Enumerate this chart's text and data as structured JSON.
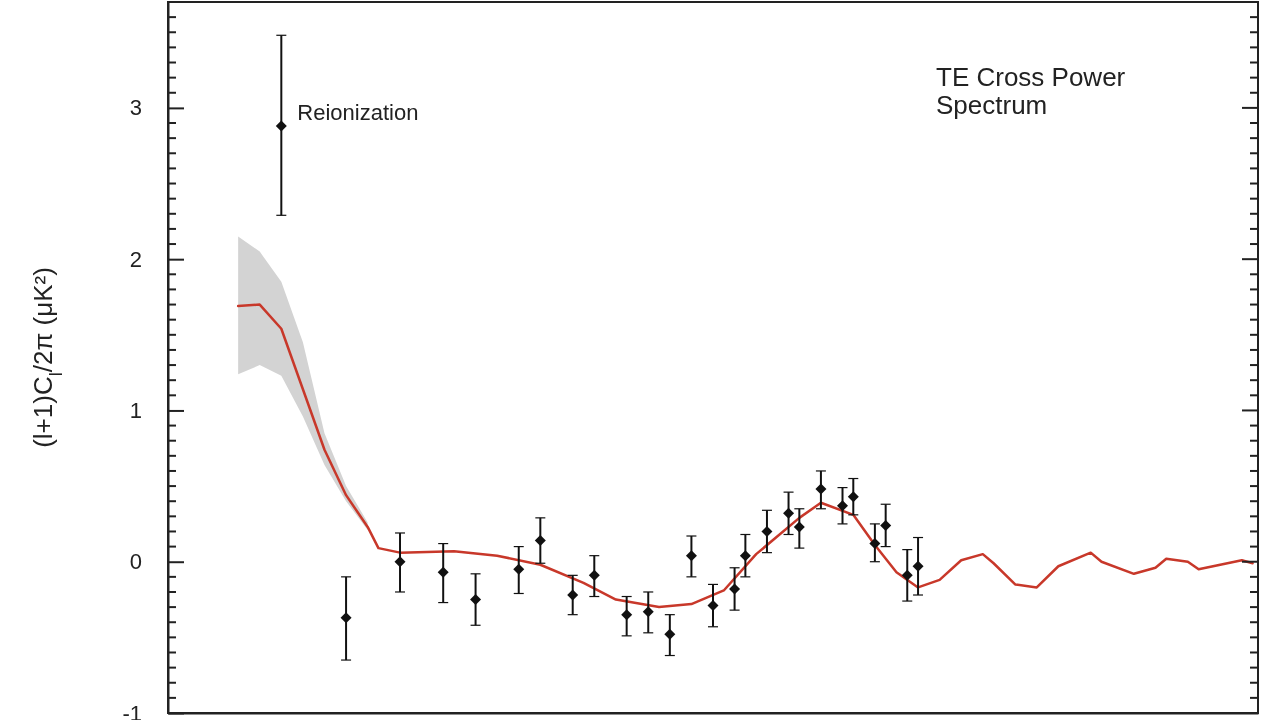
{
  "chart_data": {
    "type": "scatter",
    "title": "TE Cross Power Spectrum",
    "ylabel": "(l+1)C$_{l}$/2π (μK²)",
    "categories": [
      null,
      null,
      null,
      null,
      null,
      null,
      null,
      null,
      null,
      null,
      null,
      null,
      null,
      null,
      null,
      null,
      null,
      null,
      null,
      null,
      null,
      null,
      null,
      null,
      null,
      null,
      null,
      null,
      null,
      null,
      null,
      null,
      null,
      null,
      null,
      null,
      null,
      null,
      null,
      null,
      null,
      null,
      null,
      null,
      null,
      null,
      null,
      null,
      null,
      null,
      null,
      null,
      null,
      null,
      null,
      null,
      null,
      null,
      null,
      null,
      null,
      null,
      null,
      null,
      null,
      null,
      null,
      null,
      null,
      null,
      null,
      null,
      null,
      null,
      null,
      null,
      null,
      null,
      null,
      null,
      null,
      null,
      null,
      null,
      null,
      null,
      null,
      null,
      null,
      null,
      null,
      null,
      null,
      null,
      null,
      null,
      null,
      null,
      null,
      null,
      null
    ],
    "ylim": [
      -1,
      3.7
    ],
    "yticks": [
      -1,
      0,
      1,
      2,
      3
    ],
    "tick_labels": "y",
    "grid": false,
    "series": [
      {
        "type": "line",
        "color": "#c8382a",
        "line_style": "solid",
        "marker": "none",
        "values": [
          null,
          null,
          null,
          null,
          null,
          null,
          1.69,
          null,
          1.7,
          null,
          1.54,
          null,
          1.14,
          null,
          0.74,
          null,
          0.44,
          null,
          0.23,
          0.09,
          null,
          0.06,
          null,
          null,
          null,
          null,
          0.07,
          null,
          null,
          null,
          0.04,
          null,
          null,
          null,
          -0.02,
          null,
          null,
          null,
          -0.14,
          null,
          null,
          -0.25,
          null,
          null,
          null,
          -0.3,
          null,
          null,
          -0.28,
          null,
          null,
          -0.19,
          null,
          null,
          0.05,
          null,
          null,
          null,
          0.29,
          null,
          0.39,
          null,
          null,
          0.31,
          null,
          0.11,
          null,
          -0.07,
          null,
          -0.17,
          null,
          -0.12,
          null,
          0.01,
          null,
          0.05,
          -0.01,
          null,
          -0.15,
          null,
          -0.17,
          null,
          -0.03,
          null,
          null,
          0.06,
          0.0,
          null,
          null,
          -0.08,
          null,
          -0.04,
          0.02,
          null,
          0.0,
          -0.05,
          null,
          -0.02,
          null,
          0.01,
          -0.01
        ],
        "lower": [
          null,
          null,
          null,
          null,
          null,
          null,
          1.24,
          null,
          1.3,
          null,
          1.23,
          null,
          0.96,
          null,
          0.64,
          null,
          0.4,
          null,
          0.21,
          null,
          null,
          null,
          null,
          null,
          null,
          null,
          null,
          null,
          null,
          null,
          null,
          null,
          null,
          null,
          null,
          null,
          null,
          null,
          null,
          null,
          null,
          null,
          null,
          null,
          null,
          null,
          null,
          null,
          null,
          null,
          null,
          null,
          null,
          null,
          null,
          null,
          null,
          null,
          null,
          null,
          null,
          null,
          null,
          null,
          null,
          null,
          null,
          null,
          null,
          null,
          null,
          null,
          null,
          null,
          null,
          null,
          null,
          null,
          null,
          null,
          null,
          null,
          null,
          null,
          null,
          null,
          null,
          null,
          null,
          null,
          null,
          null,
          null,
          null,
          null,
          null,
          null,
          null,
          null,
          null,
          null
        ],
        "upper": [
          null,
          null,
          null,
          null,
          null,
          null,
          2.15,
          null,
          2.05,
          null,
          1.85,
          null,
          1.45,
          null,
          0.85,
          null,
          0.5,
          null,
          0.26,
          null,
          null,
          null,
          null,
          null,
          null,
          null,
          null,
          null,
          null,
          null,
          null,
          null,
          null,
          null,
          null,
          null,
          null,
          null,
          null,
          null,
          null,
          null,
          null,
          null,
          null,
          null,
          null,
          null,
          null,
          null,
          null,
          null,
          null,
          null,
          null,
          null,
          null,
          null,
          null,
          null,
          null,
          null,
          null,
          null,
          null,
          null,
          null,
          null,
          null,
          null,
          null,
          null,
          null,
          null,
          null,
          null,
          null,
          null,
          null,
          null,
          null,
          null,
          null,
          null,
          null,
          null,
          null,
          null,
          null,
          null,
          null,
          null,
          null,
          null,
          null,
          null,
          null,
          null,
          null,
          null,
          null
        ]
      },
      {
        "color": "#111111",
        "marker": "diamond",
        "values": [
          null,
          null,
          null,
          null,
          null,
          null,
          null,
          null,
          null,
          null,
          2.88,
          null,
          null,
          null,
          null,
          null,
          -0.37,
          null,
          null,
          null,
          null,
          0.0,
          null,
          null,
          null,
          -0.07,
          null,
          null,
          -0.25,
          null,
          null,
          null,
          -0.05,
          null,
          0.14,
          null,
          null,
          -0.22,
          null,
          -0.09,
          null,
          null,
          -0.35,
          null,
          -0.33,
          null,
          -0.48,
          null,
          0.04,
          null,
          -0.29,
          null,
          -0.18,
          0.04,
          null,
          0.2,
          null,
          0.32,
          0.23,
          null,
          0.48,
          null,
          0.37,
          0.43,
          null,
          0.12,
          0.24,
          null,
          -0.09,
          -0.03,
          null,
          null,
          null,
          null,
          null,
          null,
          null,
          null,
          null,
          null,
          null,
          null,
          null,
          null,
          null,
          null,
          null,
          null,
          null,
          null,
          null,
          null,
          null,
          null,
          null,
          null,
          null,
          null,
          null,
          null,
          null
        ],
        "errors": [
          null,
          null,
          null,
          null,
          null,
          null,
          null,
          null,
          null,
          null,
          [
            2.29,
            3.48
          ],
          null,
          null,
          null,
          null,
          null,
          [
            -0.65,
            -0.1
          ],
          null,
          null,
          null,
          null,
          [
            -0.2,
            0.19
          ],
          null,
          null,
          null,
          [
            -0.27,
            0.12
          ],
          null,
          null,
          [
            -0.42,
            -0.08
          ],
          null,
          null,
          null,
          [
            -0.21,
            0.1
          ],
          null,
          [
            -0.01,
            0.29
          ],
          null,
          null,
          [
            -0.35,
            -0.09
          ],
          null,
          [
            -0.23,
            0.04
          ],
          null,
          null,
          [
            -0.49,
            -0.23
          ],
          null,
          [
            -0.47,
            -0.2
          ],
          null,
          [
            -0.62,
            -0.35
          ],
          null,
          [
            -0.1,
            0.17
          ],
          null,
          [
            -0.43,
            -0.15
          ],
          null,
          [
            -0.32,
            -0.04
          ],
          [
            -0.1,
            0.18
          ],
          null,
          [
            0.06,
            0.34
          ],
          null,
          [
            0.18,
            0.46
          ],
          [
            0.09,
            0.35
          ],
          null,
          [
            0.35,
            0.6
          ],
          null,
          [
            0.25,
            0.49
          ],
          [
            0.31,
            0.55
          ],
          null,
          [
            0.0,
            0.25
          ],
          [
            0.1,
            0.38
          ],
          null,
          [
            -0.26,
            0.08
          ],
          [
            -0.22,
            0.16
          ],
          null,
          null,
          null,
          null,
          null,
          null,
          null,
          null,
          null,
          null,
          null,
          null,
          null,
          null,
          null,
          null,
          null,
          null,
          null,
          null,
          null,
          null,
          null,
          null,
          null,
          null,
          null,
          null,
          null,
          null,
          null
        ]
      }
    ],
    "annotations": [
      "Reionization"
    ]
  }
}
